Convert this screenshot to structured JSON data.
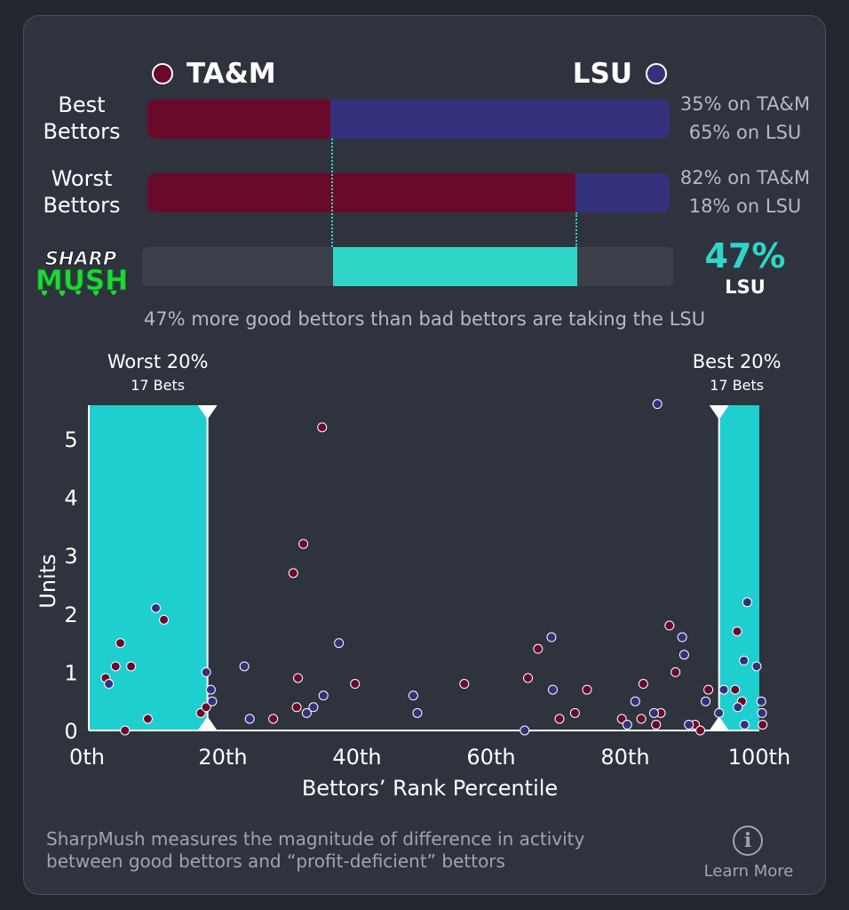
{
  "teams": {
    "left": {
      "name": "TA&M",
      "color": "#6a0a2a"
    },
    "right": {
      "name": "LSU",
      "color": "#34317c"
    }
  },
  "rows": [
    {
      "label_line1": "Best",
      "label_line2": "Bettors",
      "left_pct": 35,
      "right_pct": 65,
      "left_text": "35% on TA&M",
      "right_text": "65% on LSU"
    },
    {
      "label_line1": "Worst",
      "label_line2": "Bettors",
      "left_pct": 82,
      "right_pct": 18,
      "left_text": "82% on TA&M",
      "right_text": "18% on LSU"
    }
  ],
  "sharpmush": {
    "logo_line1": "SHARP",
    "logo_line2": "MUSH",
    "difference_pct": 47,
    "value_text": "47%",
    "team_text": "LSU",
    "accent": "#2fd6c8",
    "summary": "47% more good bettors than bad bettors are taking the LSU"
  },
  "chart_data": {
    "type": "scatter",
    "title": "",
    "xlabel": "Bettors' Rank Percentile",
    "ylabel": "Units",
    "xlim": [
      0,
      100
    ],
    "ylim": [
      0,
      5.6
    ],
    "x_ticks": [
      0,
      20,
      40,
      60,
      80,
      100
    ],
    "x_tick_labels": [
      "0th",
      "20th",
      "40th",
      "60th",
      "80th",
      "100th"
    ],
    "y_ticks": [
      0,
      1,
      2,
      3,
      4,
      5
    ],
    "y_tick_labels": [
      "0",
      "1",
      "2",
      "3",
      "4",
      "5"
    ],
    "zones": [
      {
        "name": "Worst 20%",
        "sub": "17 Bets",
        "x_start": 0,
        "x_end": 17.7
      },
      {
        "name": "Best 20%",
        "sub": "17 Bets",
        "x_start": 94,
        "x_end": 100
      }
    ],
    "series": [
      {
        "name": "TA&M",
        "color": "#6a0a2a",
        "points": [
          {
            "x": 2.5,
            "y": 0.9
          },
          {
            "x": 4,
            "y": 1.1
          },
          {
            "x": 4.7,
            "y": 1.5
          },
          {
            "x": 5.4,
            "y": 0
          },
          {
            "x": 6.3,
            "y": 1.1
          },
          {
            "x": 8.8,
            "y": 0.2
          },
          {
            "x": 11.2,
            "y": 1.9
          },
          {
            "x": 16.7,
            "y": 0.3
          },
          {
            "x": 17.5,
            "y": 0.4
          },
          {
            "x": 27.5,
            "y": 0.2
          },
          {
            "x": 30.5,
            "y": 2.7
          },
          {
            "x": 31,
            "y": 0.4
          },
          {
            "x": 31.2,
            "y": 0.9
          },
          {
            "x": 32,
            "y": 3.2
          },
          {
            "x": 34.8,
            "y": 5.2
          },
          {
            "x": 39.7,
            "y": 0.8
          },
          {
            "x": 56,
            "y": 0.8
          },
          {
            "x": 65.5,
            "y": 0.9
          },
          {
            "x": 67,
            "y": 1.4
          },
          {
            "x": 70.2,
            "y": 0.2
          },
          {
            "x": 72.5,
            "y": 0.3
          },
          {
            "x": 74.3,
            "y": 0.7
          },
          {
            "x": 79.5,
            "y": 0.2
          },
          {
            "x": 82.4,
            "y": 0.2
          },
          {
            "x": 82.7,
            "y": 0.8
          },
          {
            "x": 84.6,
            "y": 0.1
          },
          {
            "x": 85.3,
            "y": 0.3
          },
          {
            "x": 86.6,
            "y": 1.8
          },
          {
            "x": 87.5,
            "y": 1
          },
          {
            "x": 90.4,
            "y": 0.1
          },
          {
            "x": 91.2,
            "y": 0
          },
          {
            "x": 92.4,
            "y": 0.7
          },
          {
            "x": 96.4,
            "y": 0.7
          },
          {
            "x": 96.7,
            "y": 1.7
          },
          {
            "x": 97.4,
            "y": 0.5
          },
          {
            "x": 100.5,
            "y": 0.1
          }
        ]
      },
      {
        "name": "LSU",
        "color": "#34317c",
        "points": [
          {
            "x": 3,
            "y": 0.8
          },
          {
            "x": 10,
            "y": 2.1
          },
          {
            "x": 17.5,
            "y": 1
          },
          {
            "x": 18.2,
            "y": 0.7
          },
          {
            "x": 18.4,
            "y": 0.5
          },
          {
            "x": 23.2,
            "y": 1.1
          },
          {
            "x": 24,
            "y": 0.2
          },
          {
            "x": 32.5,
            "y": 0.3
          },
          {
            "x": 33.5,
            "y": 0.4
          },
          {
            "x": 35,
            "y": 0.6
          },
          {
            "x": 37.3,
            "y": 1.5
          },
          {
            "x": 48.4,
            "y": 0.6
          },
          {
            "x": 49,
            "y": 0.3
          },
          {
            "x": 65,
            "y": 0
          },
          {
            "x": 69,
            "y": 1.6
          },
          {
            "x": 69.2,
            "y": 0.7
          },
          {
            "x": 80.3,
            "y": 0.1
          },
          {
            "x": 81.5,
            "y": 0.5
          },
          {
            "x": 84.3,
            "y": 0.3
          },
          {
            "x": 84.8,
            "y": 5.6
          },
          {
            "x": 88.5,
            "y": 1.6
          },
          {
            "x": 88.8,
            "y": 1.3
          },
          {
            "x": 89.5,
            "y": 0.1
          },
          {
            "x": 92,
            "y": 0.5
          },
          {
            "x": 94,
            "y": 0.3
          },
          {
            "x": 94.7,
            "y": 0.7
          },
          {
            "x": 96.8,
            "y": 0.4
          },
          {
            "x": 97.7,
            "y": 1.2
          },
          {
            "x": 97.8,
            "y": 0.1
          },
          {
            "x": 98.2,
            "y": 2.2
          },
          {
            "x": 99.6,
            "y": 1.1
          },
          {
            "x": 100.3,
            "y": 0.5
          },
          {
            "x": 100.4,
            "y": 0.3
          }
        ]
      }
    ]
  },
  "footer": {
    "line1": "SharpMush measures the magnitude of difference in activity",
    "line2": "between good bettors and “profit-deficient” bettors",
    "learn_more": "Learn More",
    "info_glyph": "i"
  }
}
